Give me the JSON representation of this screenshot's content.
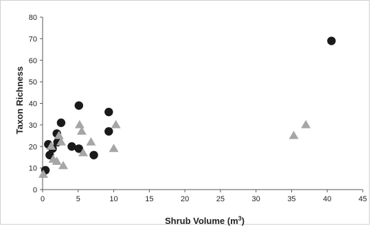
{
  "chart_data": {
    "type": "scatter",
    "title": "",
    "xlabel": "Shrub Volume",
    "xlabel_unit": "(m",
    "xlabel_unit_sup": "3",
    "xlabel_unit_close": ")",
    "ylabel": "Taxon Richness",
    "xlim": [
      0,
      45
    ],
    "ylim": [
      0,
      80
    ],
    "xticks": [
      0,
      5,
      10,
      15,
      20,
      25,
      30,
      35,
      40,
      45
    ],
    "yticks": [
      0,
      10,
      20,
      30,
      40,
      50,
      60,
      70,
      80
    ],
    "grid": false,
    "legend": "none",
    "series": [
      {
        "marker": "circle",
        "color": "#1a1a1a",
        "points": [
          {
            "x": 0.4,
            "y": 9
          },
          {
            "x": 0.8,
            "y": 21
          },
          {
            "x": 1.0,
            "y": 16
          },
          {
            "x": 1.4,
            "y": 19
          },
          {
            "x": 2.0,
            "y": 26
          },
          {
            "x": 2.1,
            "y": 22
          },
          {
            "x": 2.6,
            "y": 31
          },
          {
            "x": 4.1,
            "y": 20
          },
          {
            "x": 5.1,
            "y": 39
          },
          {
            "x": 5.1,
            "y": 19
          },
          {
            "x": 7.2,
            "y": 16
          },
          {
            "x": 9.3,
            "y": 36
          },
          {
            "x": 9.3,
            "y": 27
          },
          {
            "x": 40.6,
            "y": 69
          }
        ]
      },
      {
        "marker": "triangle",
        "color": "#a6a6a6",
        "points": [
          {
            "x": 0.1,
            "y": 7
          },
          {
            "x": 1.2,
            "y": 20
          },
          {
            "x": 1.5,
            "y": 14
          },
          {
            "x": 2.0,
            "y": 13
          },
          {
            "x": 2.3,
            "y": 25
          },
          {
            "x": 2.6,
            "y": 22
          },
          {
            "x": 2.9,
            "y": 11
          },
          {
            "x": 5.2,
            "y": 30
          },
          {
            "x": 5.5,
            "y": 27
          },
          {
            "x": 5.7,
            "y": 17
          },
          {
            "x": 6.8,
            "y": 22
          },
          {
            "x": 10.0,
            "y": 19
          },
          {
            "x": 10.3,
            "y": 30
          },
          {
            "x": 35.3,
            "y": 25
          },
          {
            "x": 37.0,
            "y": 30
          }
        ]
      }
    ]
  }
}
